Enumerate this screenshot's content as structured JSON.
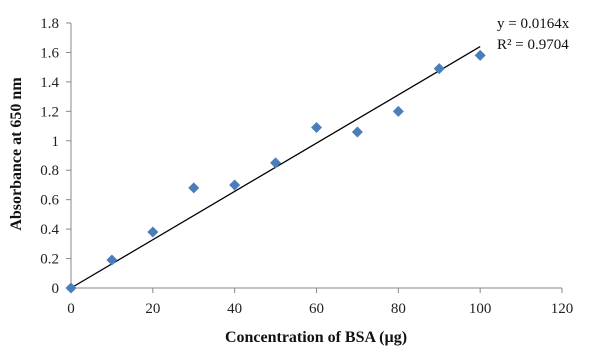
{
  "chart_data": {
    "type": "scatter",
    "title": "",
    "xlabel": "Concentration of BSA (µg)",
    "ylabel": "Absorbance at 650 nm",
    "xlim": [
      0,
      120
    ],
    "ylim": [
      0,
      1.8
    ],
    "x_ticks": [
      "0",
      "20",
      "40",
      "60",
      "80",
      "100",
      "120"
    ],
    "y_ticks": [
      "0",
      "0.2",
      "0.4",
      "0.6",
      "0.8",
      "1",
      "1.2",
      "1.4",
      "1.6",
      "1.8"
    ],
    "grid": false,
    "marker": "diamond",
    "marker_color": "#4a7ebb",
    "series": [
      {
        "x": [
          0,
          10,
          20,
          30,
          40,
          50,
          60,
          70,
          80,
          90,
          100
        ],
        "y": [
          0.0,
          0.19,
          0.38,
          0.68,
          0.7,
          0.85,
          1.09,
          1.06,
          1.2,
          1.49,
          1.58
        ]
      }
    ],
    "trendline": {
      "type": "linear",
      "slope": 0.0164,
      "intercept": 0,
      "x_range": [
        0,
        100
      ],
      "color": "#000000"
    },
    "annotations": [
      "y = 0.0164x",
      "R² = 0.9704"
    ]
  }
}
